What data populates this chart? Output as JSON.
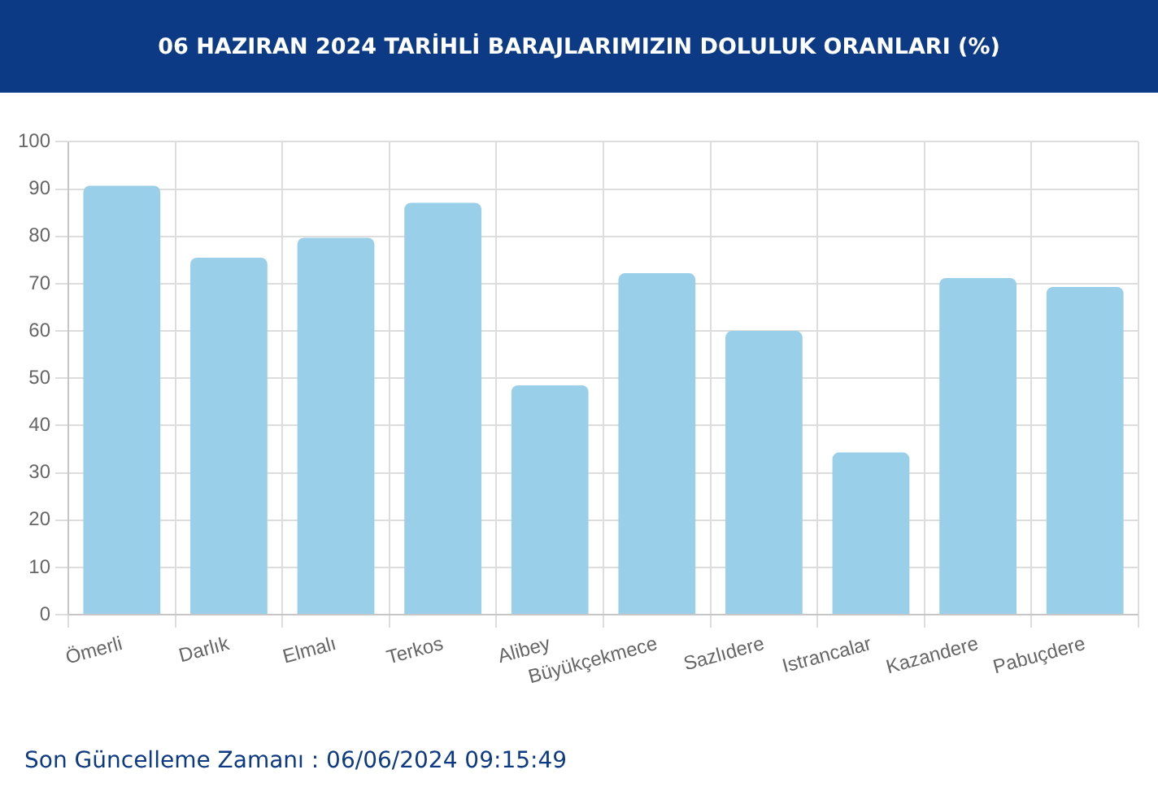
{
  "chart_data": {
    "type": "bar",
    "title": "06 HAZIRAN 2024 TARİHLİ BARAJLARIMIZIN DOLULUK ORANLARI (%)",
    "categories": [
      "Ömerli",
      "Darlık",
      "Elmalı",
      "Terkos",
      "Alibey",
      "Büyükçekmece",
      "Sazlıdere",
      "Istrancalar",
      "Kazandere",
      "Pabuçdere"
    ],
    "values": [
      90.7,
      75.5,
      79.7,
      87.1,
      48.5,
      72.2,
      60.0,
      34.3,
      71.2,
      69.3
    ],
    "color": "#9acfea",
    "ylim": [
      0,
      100
    ],
    "yticks": [
      0,
      10,
      20,
      30,
      40,
      50,
      60,
      70,
      80,
      90,
      100
    ],
    "grid": true,
    "legend": false,
    "annotations": [
      "Son Güncelleme Zamanı : 06/06/2024 09:15:49"
    ]
  }
}
